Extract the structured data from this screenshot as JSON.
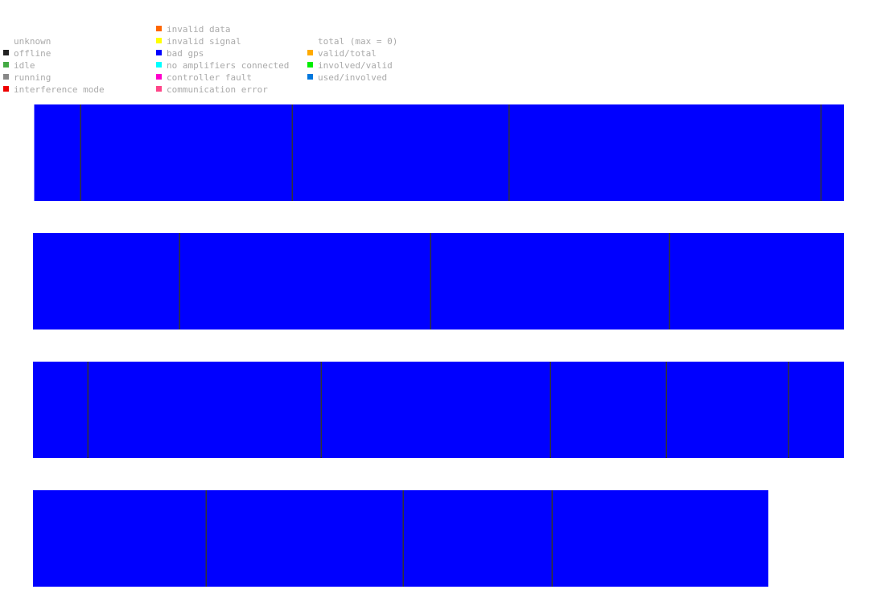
{
  "legend": {
    "columns": [
      {
        "items": [
          {
            "label": "unknown",
            "color": ""
          },
          {
            "label": "offline",
            "color": "#222222"
          },
          {
            "label": "idle",
            "color": "#44aa44"
          },
          {
            "label": "running",
            "color": "#888888"
          },
          {
            "label": "interference mode",
            "color": "#ee0000"
          }
        ]
      },
      {
        "items": [
          {
            "label": "invalid data",
            "color": "#ff6600"
          },
          {
            "label": "invalid signal",
            "color": "#ffff00"
          },
          {
            "label": "bad gps",
            "color": "#0000ff"
          },
          {
            "label": "no amplifiers connected",
            "color": "#00ffff"
          },
          {
            "label": "controller fault",
            "color": "#ff00cc"
          },
          {
            "label": "communication error",
            "color": "#ff4488"
          }
        ]
      },
      {
        "items": [
          {
            "label": "total (max = 0)",
            "color": ""
          },
          {
            "label": "valid/total",
            "color": "#ffaa00"
          },
          {
            "label": "involved/valid",
            "color": "#00ee00"
          },
          {
            "label": "used/involved",
            "color": "#0077dd"
          }
        ]
      }
    ]
  },
  "chart_data": {
    "type": "timeline",
    "fill_color": "#0000ff",
    "divider_color": "#333333",
    "rows": [
      {
        "start": 0.0015,
        "end": 1.0,
        "dividers": [
          0.0585,
          0.3195,
          0.5868,
          0.9714
        ]
      },
      {
        "start": 0.0,
        "end": 1.0,
        "dividers": [
          0.1805,
          0.4901,
          0.7847
        ]
      },
      {
        "start": 0.0,
        "end": 1.0,
        "dividers": [
          0.0675,
          0.3552,
          0.6379,
          0.7808,
          0.9315
        ]
      },
      {
        "start": 0.0,
        "end": 0.9067,
        "dividers": [
          0.2133,
          0.4563,
          0.6399
        ]
      }
    ]
  }
}
